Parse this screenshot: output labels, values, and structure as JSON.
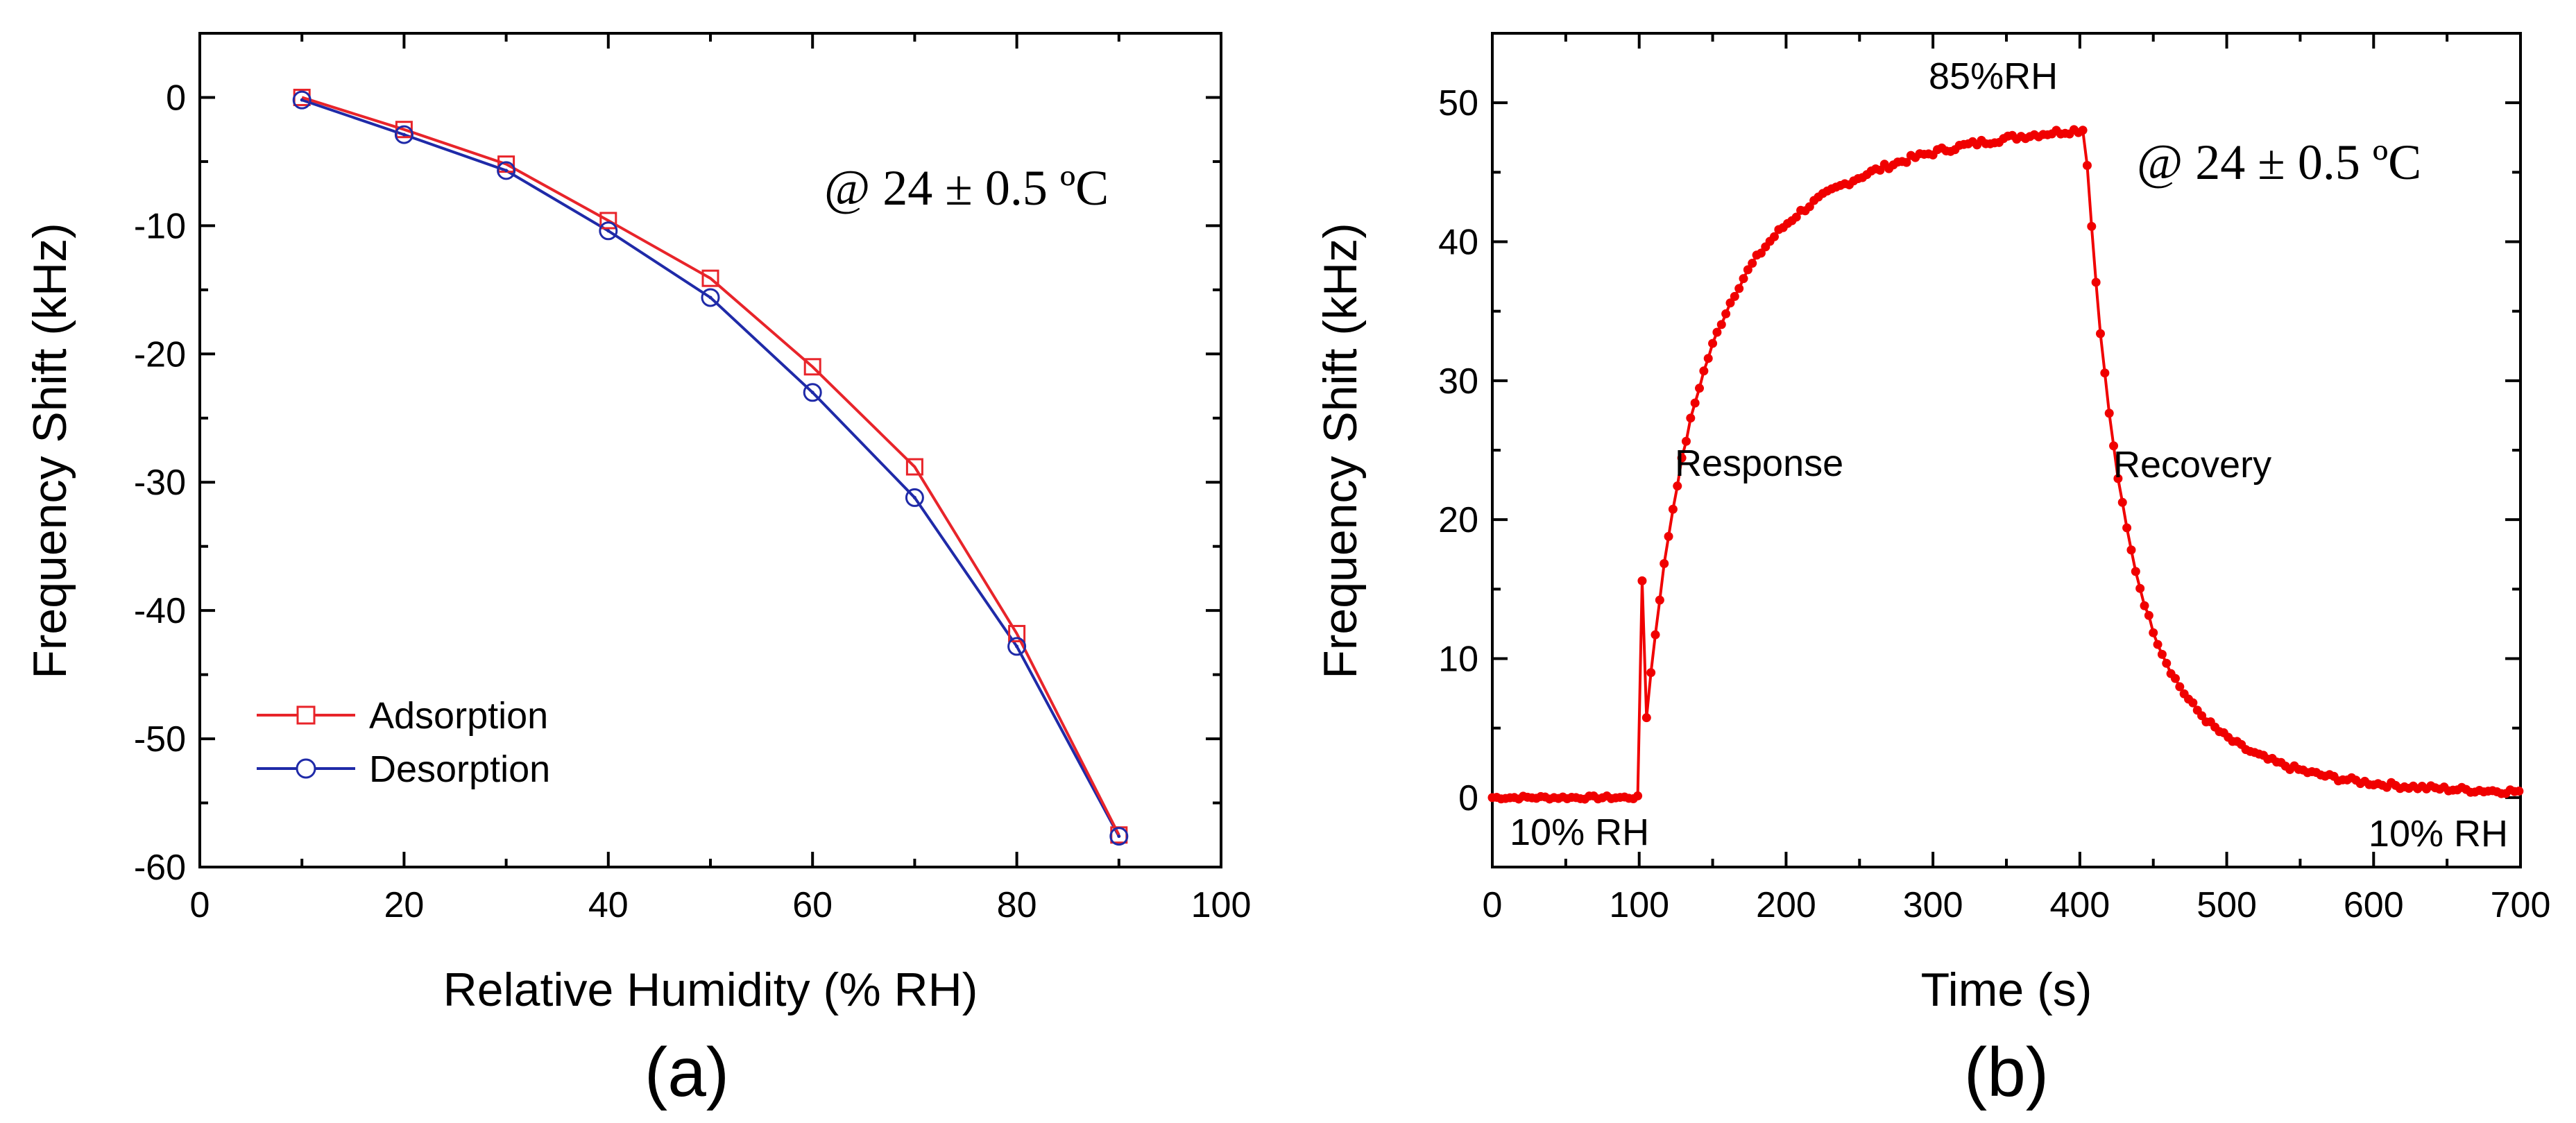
{
  "chart_data": [
    {
      "panel": "(a)",
      "type": "line",
      "xlabel": "Relative Humidity (% RH)",
      "ylabel": "Frequency Shift (kHz)",
      "xlim": [
        0,
        100
      ],
      "ylim": [
        -60,
        5
      ],
      "xticks": [
        0,
        20,
        40,
        60,
        80,
        100
      ],
      "yticks": [
        0,
        -10,
        -20,
        -30,
        -40,
        -50,
        -60
      ],
      "condition": "@ 24 ± 0.5 ºC",
      "legend_position": "bottom-left",
      "series": [
        {
          "name": "Adsorption",
          "color": "#e8242a",
          "marker": "square",
          "x": [
            10,
            20,
            30,
            40,
            50,
            60,
            70,
            80,
            90
          ],
          "y": [
            0,
            -2.5,
            -5.2,
            -9.6,
            -14.1,
            -21.0,
            -28.8,
            -41.8,
            -57.5
          ]
        },
        {
          "name": "Desorption",
          "color": "#1f2aa8",
          "marker": "circle",
          "x": [
            10,
            20,
            30,
            40,
            50,
            60,
            70,
            80,
            90
          ],
          "y": [
            -0.2,
            -2.9,
            -5.7,
            -10.4,
            -15.6,
            -23.0,
            -31.2,
            -42.8,
            -57.6
          ]
        }
      ]
    },
    {
      "panel": "(b)",
      "type": "scatter",
      "xlabel": "Time (s)",
      "ylabel": "Frequency Shift (kHz)",
      "xlim": [
        0,
        700
      ],
      "ylim": [
        -5,
        55
      ],
      "xticks": [
        0,
        100,
        200,
        300,
        400,
        500,
        600,
        700
      ],
      "yticks": [
        0,
        10,
        20,
        30,
        40,
        50
      ],
      "condition": "@ 24 ± 0.5 ºC",
      "series": [
        {
          "name": "Frequency shift",
          "color": "#f00000",
          "marker": "dot",
          "step_s": 3,
          "switch_on_s": 100,
          "switch_off_s": 403,
          "baseline": 0,
          "plateau": 49,
          "response_tau_s": 28,
          "recovery_tau_s": 38,
          "final_value": 0.3
        }
      ],
      "annotations": {
        "low_left": "10% RH",
        "high": "85%RH",
        "low_right": "10% RH",
        "response": "Response",
        "recovery": "Recovery"
      }
    }
  ],
  "panel_labels": [
    "(a)",
    "(b)"
  ]
}
